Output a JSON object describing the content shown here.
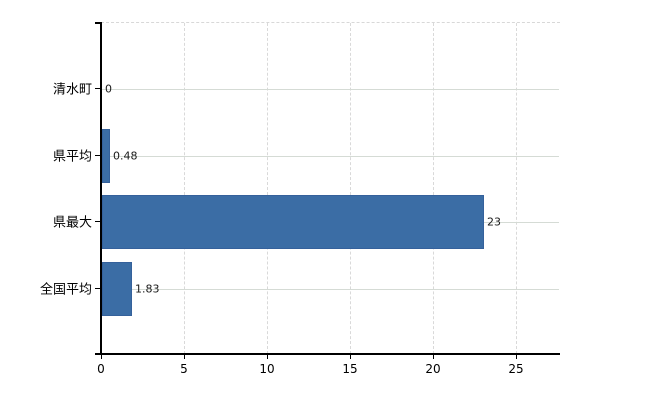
{
  "chart_data": {
    "type": "bar",
    "orientation": "horizontal",
    "title": "",
    "xlabel": "",
    "ylabel": "",
    "categories": [
      "清水町",
      "県平均",
      "県最大",
      "全国平均"
    ],
    "values": [
      0,
      0.48,
      23,
      1.83
    ],
    "value_labels": [
      "0",
      "0.48",
      "23",
      "1.83"
    ],
    "x_ticks": [
      0,
      5,
      10,
      15,
      20,
      25
    ],
    "x_tick_labels": [
      "0",
      "5",
      "10",
      "15",
      "20",
      "25"
    ],
    "xlim": [
      0,
      27.65
    ],
    "grid": true,
    "legend": "none",
    "bar_color": "#3b6da5",
    "bar_border_color": "#35619b",
    "vertical_gridline_color": "#d9d9d9",
    "horizontal_gridline_color": "#d5dbd5",
    "axis_color": "#000000",
    "text_color": "#000000",
    "background_color": "#ffffff"
  }
}
